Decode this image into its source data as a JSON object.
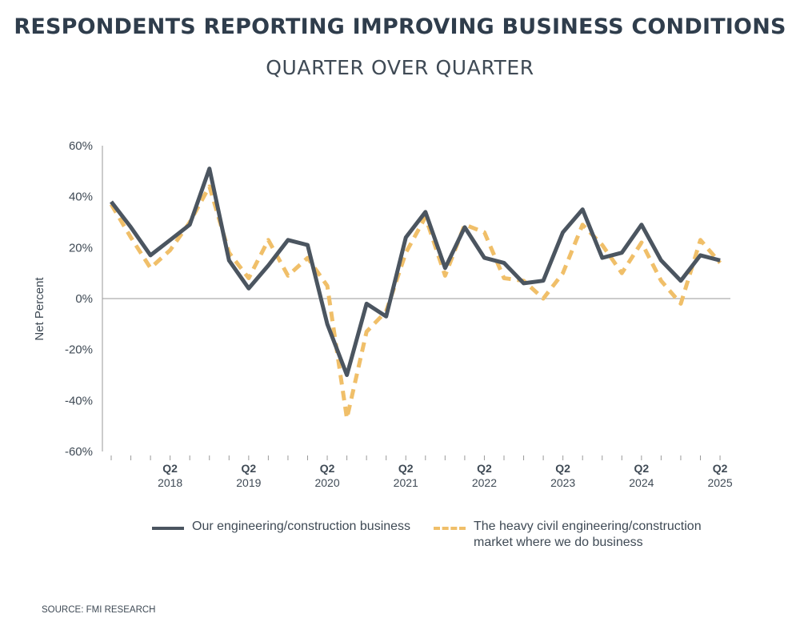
{
  "header": {
    "title": "RESPONDENTS REPORTING IMPROVING BUSINESS CONDITIONS",
    "subtitle": "QUARTER OVER QUARTER"
  },
  "footer": {
    "source": "SOURCE: FMI RESEARCH"
  },
  "colors": {
    "series1": "#4b5560",
    "series2": "#f0bf69",
    "axis": "#9a9a9a",
    "text": "#3f4a55",
    "title": "#2f3d4c"
  },
  "chart_data": {
    "type": "line",
    "title": "RESPONDENTS REPORTING IMPROVING BUSINESS CONDITIONS",
    "subtitle": "QUARTER OVER QUARTER",
    "xlabel": "",
    "ylabel": "Net Percent",
    "ylim": [
      -60,
      60
    ],
    "yticks": [
      -60,
      -40,
      -20,
      0,
      20,
      40,
      60
    ],
    "ytick_labels": [
      "-60%",
      "-40%",
      "-20%",
      "0%",
      "20%",
      "40%",
      "60%"
    ],
    "grid": false,
    "legend_position": "bottom",
    "x_tick_labels": [
      {
        "q": "Q2",
        "year": "2018"
      },
      {
        "q": "Q2",
        "year": "2019"
      },
      {
        "q": "Q2",
        "year": "2020"
      },
      {
        "q": "Q2",
        "year": "2021"
      },
      {
        "q": "Q2",
        "year": "2022"
      },
      {
        "q": "Q2",
        "year": "2023"
      },
      {
        "q": "Q2",
        "year": "2024"
      },
      {
        "q": "Q2",
        "year": "2025"
      }
    ],
    "x_label_indices": [
      3,
      7,
      11,
      15,
      19,
      23,
      27,
      31
    ],
    "num_quarters": 32,
    "series": [
      {
        "name": "Our engineering/construction business",
        "style": "solid",
        "values": [
          38,
          28,
          17,
          23,
          29,
          51,
          15,
          4,
          13,
          23,
          21,
          -10,
          -30,
          -2,
          -7,
          24,
          34,
          12,
          28,
          16,
          14,
          6,
          7,
          26,
          35,
          16,
          18,
          29,
          15,
          7,
          17,
          15
        ]
      },
      {
        "name": "The heavy civil engineering/construction market where we do business",
        "style": "dashed",
        "values": [
          37,
          24,
          12,
          19,
          30,
          44,
          18,
          8,
          23,
          9,
          16,
          5,
          -47,
          -13,
          -5,
          18,
          32,
          9,
          29,
          26,
          8,
          7,
          0,
          10,
          29,
          21,
          10,
          22,
          7,
          -2,
          23,
          14
        ]
      }
    ]
  }
}
